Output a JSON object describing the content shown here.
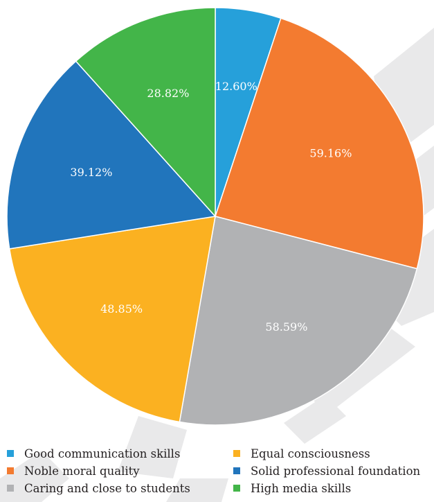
{
  "chart_data": {
    "type": "pie",
    "title": "",
    "slices": [
      {
        "name": "Good communication skills",
        "value": 12.6,
        "label": "12.60%",
        "color": "#26a0da"
      },
      {
        "name": "Noble moral quality",
        "value": 59.16,
        "label": "59.16%",
        "color": "#f37b30"
      },
      {
        "name": "Caring and close to students",
        "value": 58.59,
        "label": "58.59%",
        "color": "#b1b2b4"
      },
      {
        "name": "Equal consciousness",
        "value": 48.85,
        "label": "48.85%",
        "color": "#fbb121"
      },
      {
        "name": "Solid professional foundation",
        "value": 39.12,
        "label": "39.12%",
        "color": "#2175bc"
      },
      {
        "name": "High media skills",
        "value": 28.82,
        "label": "28.82%",
        "color": "#43b549"
      }
    ],
    "start_angle": "12 o'clock",
    "direction": "clockwise",
    "legend_placement": "bottom",
    "legend_order": [
      0,
      3,
      1,
      4,
      2,
      5
    ]
  }
}
